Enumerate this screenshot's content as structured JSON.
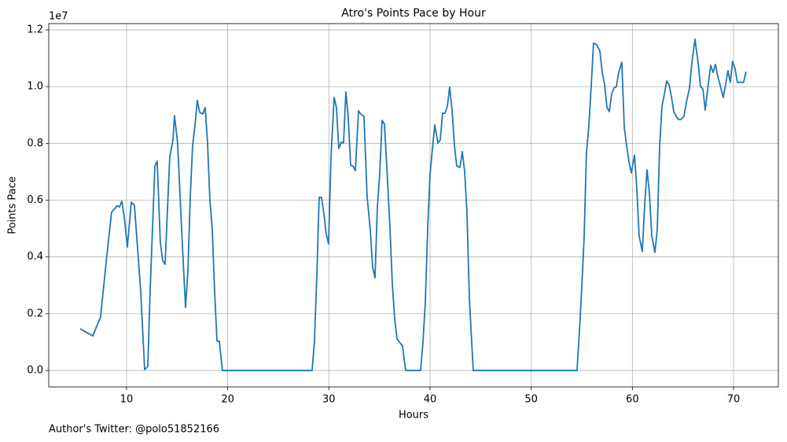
{
  "chart_data": {
    "type": "line",
    "title": "Atro's Points Pace by Hour",
    "x_label": "Hours",
    "y_label": "Points Pace",
    "y_offset_label": "1e7",
    "footnote": "Author's Twitter: @polo51852166",
    "color": "#1f77b4",
    "grid": true,
    "xlim": [
      2.31,
      74.43
    ],
    "ylim": [
      -0.058,
      1.222
    ],
    "xticks": [
      10,
      20,
      30,
      40,
      50,
      60,
      70
    ],
    "yticks": [
      {
        "value": 0,
        "label": "0.0"
      },
      0.2,
      0.4,
      0.6,
      0.8,
      {
        "value": 1,
        "label": "1.0"
      },
      1.2
    ],
    "x": [
      5.41,
      6.66,
      7.43,
      7.98,
      8.52,
      9.07,
      9.3,
      9.53,
      9.77,
      10.08,
      10.47,
      10.78,
      11.4,
      11.79,
      12.1,
      12.33,
      12.8,
      13.03,
      13.34,
      13.57,
      13.81,
      14.27,
      14.59,
      14.74,
      15.05,
      15.44,
      15.83,
      16.06,
      16.3,
      16.53,
      16.76,
      17.0,
      17.23,
      17.54,
      17.77,
      18.0,
      18.24,
      18.47,
      18.7,
      18.94,
      19.17,
      19.48,
      28.34,
      28.57,
      28.81,
      29.04,
      29.27,
      29.51,
      29.74,
      29.97,
      30.21,
      30.52,
      30.75,
      30.98,
      31.22,
      31.45,
      31.68,
      31.92,
      32.15,
      32.38,
      32.62,
      32.93,
      33.16,
      33.47,
      33.78,
      34.09,
      34.33,
      34.56,
      34.79,
      35.03,
      35.26,
      35.49,
      35.72,
      36.04,
      36.27,
      36.5,
      36.74,
      36.97,
      37.28,
      37.59,
      39.07,
      39.3,
      39.53,
      39.77,
      40.0,
      40.23,
      40.47,
      40.78,
      41.01,
      41.24,
      41.48,
      41.71,
      41.94,
      42.18,
      42.41,
      42.64,
      42.95,
      43.19,
      43.42,
      43.65,
      43.89,
      44.27,
      54.53,
      54.77,
      55.0,
      55.23,
      55.46,
      55.7,
      55.93,
      56.16,
      56.48,
      56.79,
      57.02,
      57.25,
      57.49,
      57.72,
      57.95,
      58.18,
      58.42,
      58.65,
      58.96,
      59.2,
      59.43,
      59.66,
      59.9,
      60.21,
      60.44,
      60.67,
      60.98,
      61.22,
      61.45,
      61.68,
      61.92,
      62.23,
      62.46,
      62.7,
      62.93,
      63.16,
      63.39,
      63.63,
      63.86,
      64.09,
      64.33,
      64.56,
      64.79,
      65.1,
      65.34,
      65.65,
      65.88,
      66.19,
      66.5,
      66.73,
      66.97,
      67.2,
      67.43,
      67.74,
      67.97,
      68.21,
      68.44,
      68.67,
      68.98,
      69.21,
      69.45,
      69.68,
      69.91,
      70.14,
      70.38,
      70.69,
      71.0,
      71.23
    ],
    "values": [
      0.147,
      0.122,
      0.188,
      0.38,
      0.557,
      0.58,
      0.576,
      0.596,
      0.543,
      0.435,
      0.593,
      0.582,
      0.28,
      0.003,
      0.014,
      0.28,
      0.72,
      0.737,
      0.45,
      0.388,
      0.374,
      0.751,
      0.812,
      0.898,
      0.8,
      0.5,
      0.222,
      0.346,
      0.612,
      0.793,
      0.862,
      0.951,
      0.909,
      0.904,
      0.926,
      0.807,
      0.599,
      0.5,
      0.285,
      0.103,
      0.103,
      0,
      0,
      0.1,
      0.335,
      0.61,
      0.61,
      0.552,
      0.48,
      0.446,
      0.751,
      0.962,
      0.926,
      0.782,
      0.804,
      0.801,
      0.981,
      0.89,
      0.723,
      0.72,
      0.704,
      0.915,
      0.904,
      0.895,
      0.613,
      0.496,
      0.363,
      0.327,
      0.571,
      0.696,
      0.881,
      0.868,
      0.723,
      0.502,
      0.308,
      0.183,
      0.111,
      0.1,
      0.086,
      0,
      0,
      0.1,
      0.238,
      0.502,
      0.69,
      0.779,
      0.865,
      0.801,
      0.812,
      0.906,
      0.906,
      0.931,
      0.998,
      0.917,
      0.793,
      0.721,
      0.715,
      0.771,
      0.701,
      0.557,
      0.252,
      0,
      0,
      0.141,
      0.294,
      0.468,
      0.765,
      0.862,
      1.0,
      1.153,
      1.147,
      1.125,
      1.05,
      1.009,
      0.926,
      0.912,
      0.973,
      0.995,
      1.0,
      1.05,
      1.086,
      0.856,
      0.793,
      0.737,
      0.696,
      0.759,
      0.64,
      0.474,
      0.419,
      0.585,
      0.707,
      0.626,
      0.474,
      0.416,
      0.496,
      0.793,
      0.931,
      0.973,
      1.02,
      1.006,
      0.965,
      0.912,
      0.895,
      0.884,
      0.884,
      0.895,
      0.945,
      0.995,
      1.084,
      1.167,
      1.084,
      1.0,
      0.992,
      0.917,
      0.987,
      1.075,
      1.05,
      1.078,
      1.037,
      1.006,
      0.962,
      1.006,
      1.056,
      1.015,
      1.089,
      1.064,
      1.015,
      1.015,
      1.015,
      1.053
    ]
  }
}
